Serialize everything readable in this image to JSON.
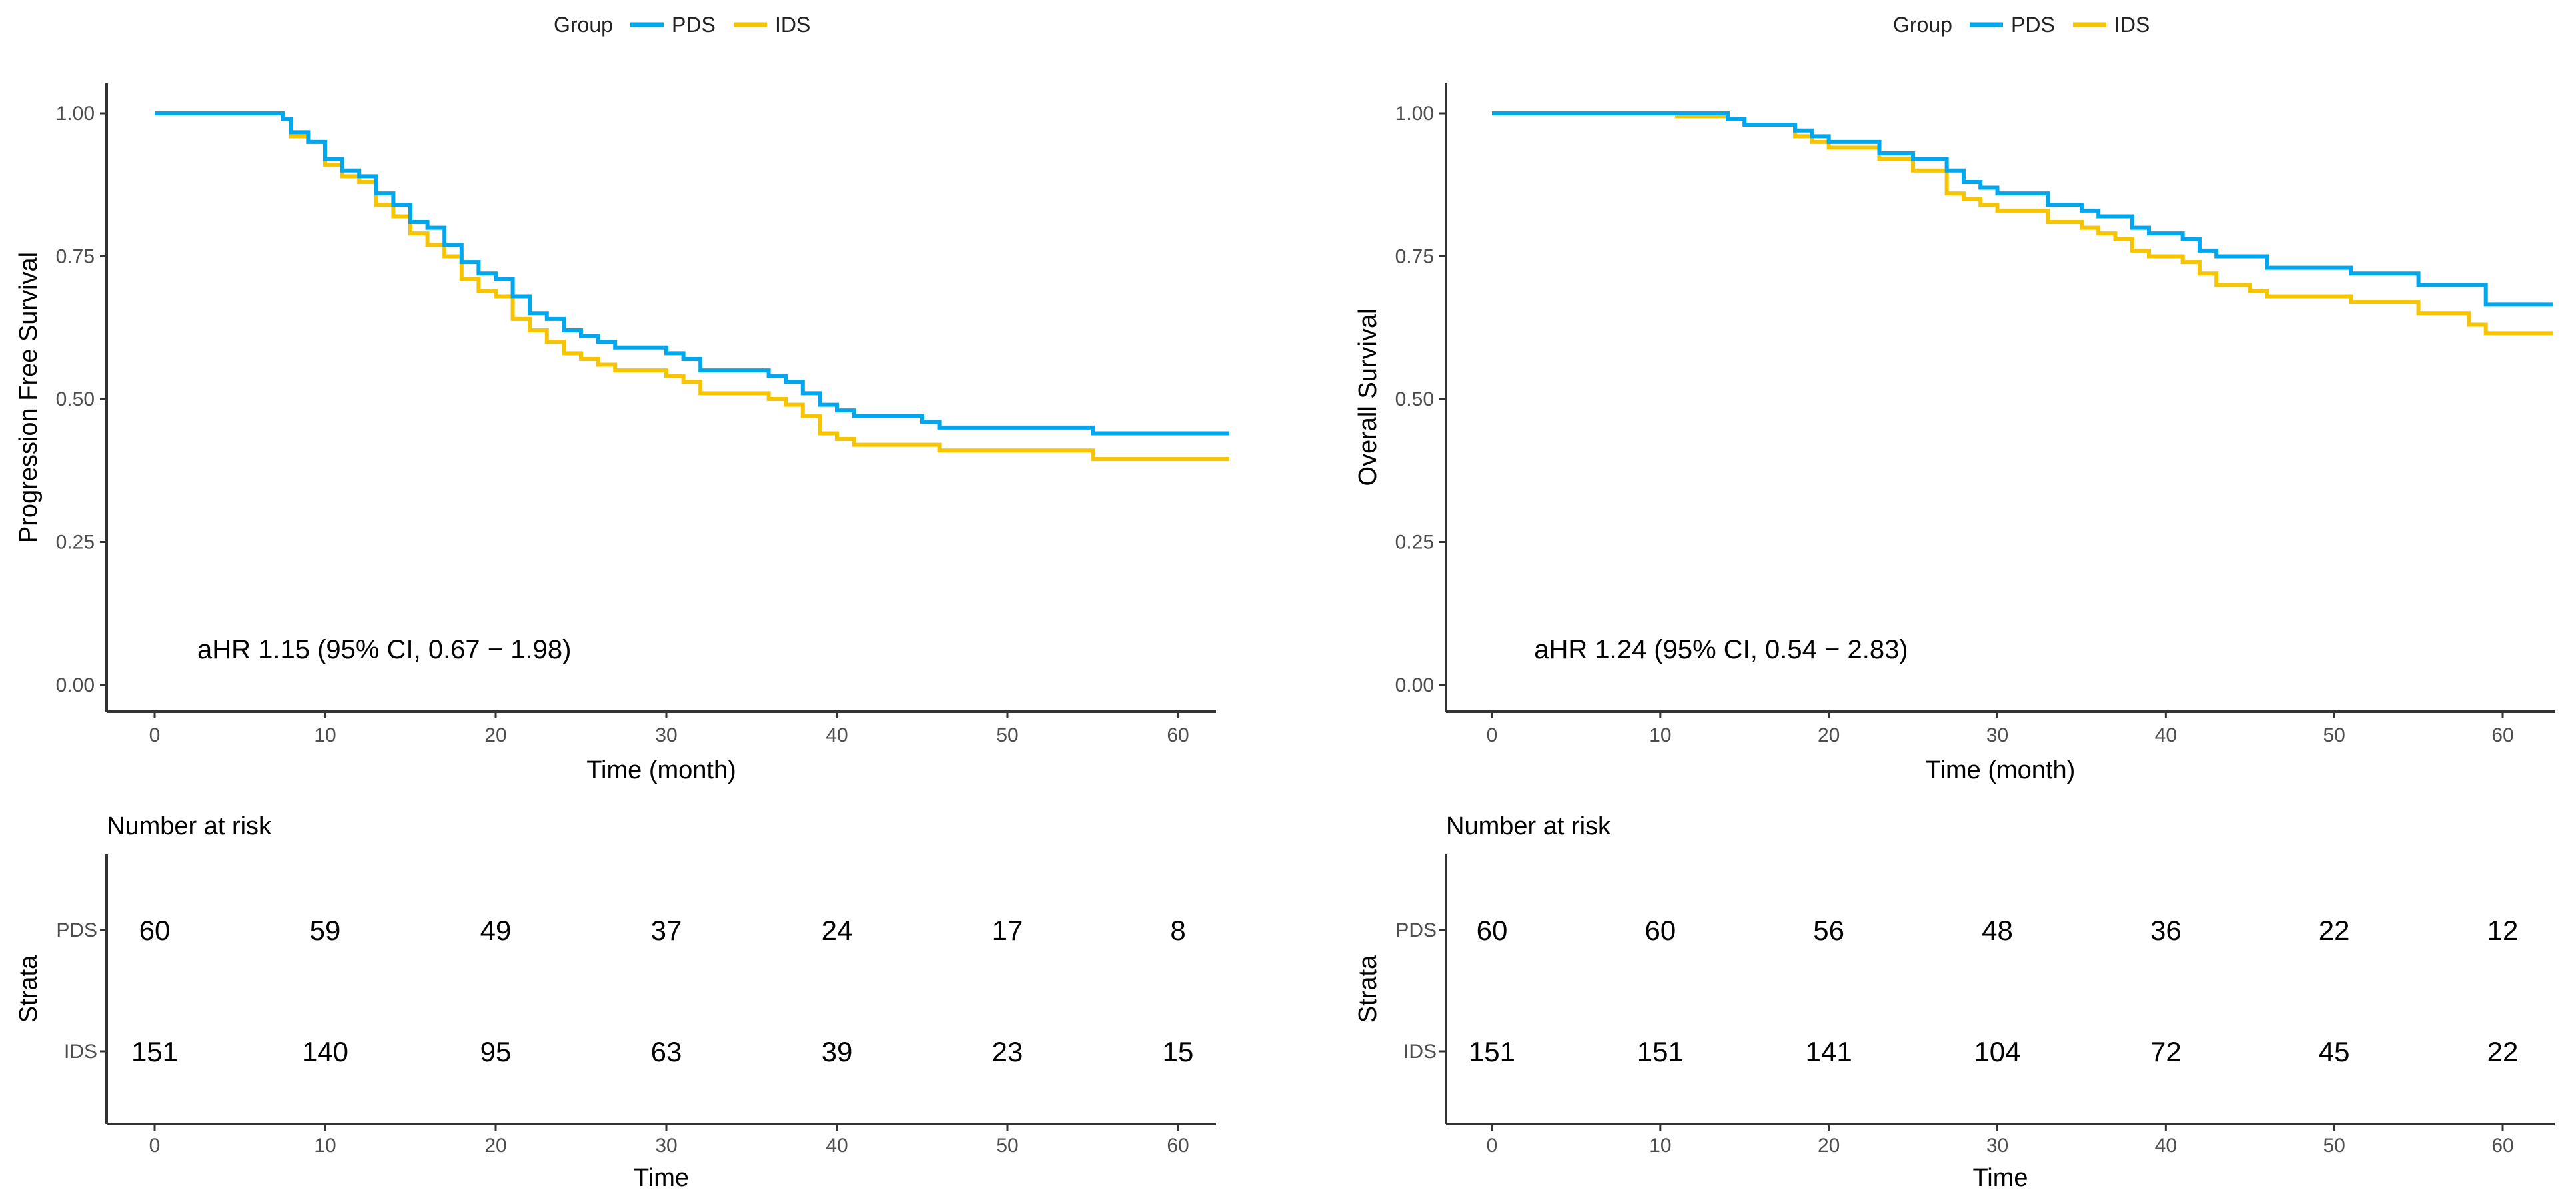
{
  "colors": {
    "PDS": "#00A6EE",
    "IDS": "#F7C400",
    "axis": "#333333"
  },
  "chart_data": [
    {
      "type": "line",
      "step": true,
      "legend": {
        "title": "Group",
        "entries": [
          "PDS",
          "IDS"
        ],
        "placement": "top"
      },
      "xlabel": "Time (month)",
      "ylabel": "Progression Free Survival",
      "xlim": [
        -3,
        63
      ],
      "ylim": [
        -0.04,
        1.04
      ],
      "xticks": [
        "0",
        "10",
        "20",
        "30",
        "40",
        "50",
        "60"
      ],
      "yticks": [
        "0.00",
        "0.25",
        "0.50",
        "0.75",
        "1.00"
      ],
      "annotation": "aHR 1.15 (95% CI, 0.67 − 1.98)",
      "series": [
        {
          "name": "PDS",
          "x": [
            0,
            7.5,
            8,
            9,
            10,
            11,
            12,
            13,
            14,
            15,
            16,
            17,
            18,
            19,
            20,
            21,
            22,
            23,
            24,
            25,
            26,
            27,
            30,
            31,
            32,
            36,
            37,
            38,
            39,
            40,
            41,
            45,
            46,
            55,
            63
          ],
          "y": [
            1,
            0.99,
            0.967,
            0.95,
            0.92,
            0.9,
            0.89,
            0.86,
            0.84,
            0.81,
            0.8,
            0.77,
            0.74,
            0.72,
            0.71,
            0.68,
            0.65,
            0.64,
            0.62,
            0.61,
            0.6,
            0.59,
            0.58,
            0.57,
            0.55,
            0.54,
            0.53,
            0.51,
            0.49,
            0.48,
            0.47,
            0.46,
            0.45,
            0.44,
            0.44
          ]
        },
        {
          "name": "IDS",
          "x": [
            0,
            7.5,
            8,
            9,
            10,
            11,
            12,
            13,
            14,
            15,
            16,
            17,
            18,
            19,
            20,
            21,
            22,
            23,
            24,
            25,
            26,
            27,
            30,
            31,
            32,
            36,
            37,
            38,
            39,
            40,
            41,
            45,
            46,
            55,
            63
          ],
          "y": [
            1,
            0.99,
            0.96,
            0.95,
            0.91,
            0.89,
            0.88,
            0.84,
            0.82,
            0.79,
            0.77,
            0.75,
            0.71,
            0.69,
            0.68,
            0.64,
            0.62,
            0.6,
            0.58,
            0.57,
            0.56,
            0.55,
            0.54,
            0.53,
            0.51,
            0.5,
            0.49,
            0.47,
            0.44,
            0.43,
            0.42,
            0.42,
            0.41,
            0.395,
            0.395
          ]
        }
      ],
      "risk_table": {
        "title": "Number at risk",
        "ylabel": "Strata",
        "xlabel": "Time",
        "times": [
          "0",
          "10",
          "20",
          "30",
          "40",
          "50",
          "60"
        ],
        "rows": [
          {
            "name": "PDS",
            "values": [
              "60",
              "59",
              "49",
              "37",
              "24",
              "17",
              "8"
            ]
          },
          {
            "name": "IDS",
            "values": [
              "151",
              "140",
              "95",
              "63",
              "39",
              "23",
              "15"
            ]
          }
        ]
      }
    },
    {
      "type": "line",
      "step": true,
      "legend": {
        "title": "Group",
        "entries": [
          "PDS",
          "IDS"
        ],
        "placement": "top"
      },
      "xlabel": "Time (month)",
      "ylabel": "Overall Survival",
      "xlim": [
        -3,
        63
      ],
      "ylim": [
        -0.04,
        1.04
      ],
      "xticks": [
        "0",
        "10",
        "20",
        "30",
        "40",
        "50",
        "60"
      ],
      "yticks": [
        "0.00",
        "0.25",
        "0.50",
        "0.75",
        "1.00"
      ],
      "annotation": "aHR 1.24 (95% CI, 0.54 − 2.83)",
      "series": [
        {
          "name": "PDS",
          "x": [
            0,
            14,
            15,
            18,
            19,
            20,
            23,
            25,
            27,
            28,
            29,
            30,
            33,
            35,
            36,
            38,
            39,
            41,
            42,
            43,
            46,
            51,
            55,
            59,
            63
          ],
          "y": [
            1,
            0.99,
            0.98,
            0.97,
            0.96,
            0.95,
            0.93,
            0.92,
            0.9,
            0.88,
            0.87,
            0.86,
            0.84,
            0.83,
            0.82,
            0.8,
            0.79,
            0.78,
            0.76,
            0.75,
            0.73,
            0.72,
            0.7,
            0.665,
            0.665
          ]
        },
        {
          "name": "IDS",
          "x": [
            0,
            11,
            14,
            15,
            18,
            19,
            20,
            23,
            25,
            27,
            28,
            29,
            30,
            33,
            35,
            36,
            37,
            38,
            39,
            41,
            42,
            43,
            45,
            46,
            51,
            55,
            58,
            59,
            63
          ],
          "y": [
            1,
            0.995,
            0.99,
            0.98,
            0.96,
            0.95,
            0.94,
            0.92,
            0.9,
            0.86,
            0.85,
            0.84,
            0.83,
            0.81,
            0.8,
            0.79,
            0.78,
            0.76,
            0.75,
            0.74,
            0.72,
            0.7,
            0.69,
            0.68,
            0.67,
            0.65,
            0.63,
            0.615,
            0.615
          ]
        }
      ],
      "risk_table": {
        "title": "Number at risk",
        "ylabel": "Strata",
        "xlabel": "Time",
        "times": [
          "0",
          "10",
          "20",
          "30",
          "40",
          "50",
          "60"
        ],
        "rows": [
          {
            "name": "PDS",
            "values": [
              "60",
              "60",
              "56",
              "48",
              "36",
              "22",
              "12"
            ]
          },
          {
            "name": "IDS",
            "values": [
              "151",
              "151",
              "141",
              "104",
              "72",
              "45",
              "22"
            ]
          }
        ]
      }
    }
  ]
}
